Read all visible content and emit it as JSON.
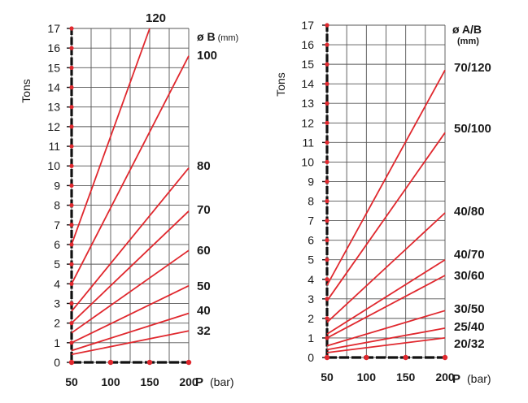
{
  "chart_data": [
    {
      "type": "line",
      "ylabel": "Tons",
      "xlabel_main": "P",
      "xlabel_unit": "(bar)",
      "legend_title": "ø B",
      "legend_unit": "(mm)",
      "x_ticks": [
        50,
        100,
        150,
        200
      ],
      "xlim": [
        50,
        200
      ],
      "y_ticks": [
        0,
        1,
        2,
        3,
        4,
        5,
        6,
        7,
        8,
        9,
        10,
        11,
        12,
        13,
        14,
        15,
        16,
        17
      ],
      "ylim": [
        0,
        17
      ],
      "grid": true,
      "series_color": "#e0282e",
      "series": [
        {
          "name": "120",
          "x": [
            50,
            150
          ],
          "y": [
            6.0,
            17.0
          ]
        },
        {
          "name": "100",
          "x": [
            50,
            200
          ],
          "y": [
            4.0,
            15.6
          ]
        },
        {
          "name": "80",
          "x": [
            50,
            200
          ],
          "y": [
            2.6,
            9.9
          ]
        },
        {
          "name": "70",
          "x": [
            50,
            200
          ],
          "y": [
            2.0,
            7.7
          ]
        },
        {
          "name": "60",
          "x": [
            50,
            200
          ],
          "y": [
            1.5,
            5.7
          ]
        },
        {
          "name": "50",
          "x": [
            50,
            200
          ],
          "y": [
            1.0,
            3.9
          ]
        },
        {
          "name": "40",
          "x": [
            50,
            200
          ],
          "y": [
            0.6,
            2.5
          ]
        },
        {
          "name": "32",
          "x": [
            50,
            200
          ],
          "y": [
            0.4,
            1.6
          ]
        }
      ]
    },
    {
      "type": "line",
      "ylabel": "Tons",
      "xlabel_main": "P",
      "xlabel_unit": "(bar)",
      "legend_title": "ø A/B",
      "legend_unit": "(mm)",
      "x_ticks": [
        50,
        100,
        150,
        200
      ],
      "xlim": [
        50,
        200
      ],
      "y_ticks": [
        0,
        1,
        2,
        3,
        4,
        5,
        6,
        7,
        8,
        9,
        10,
        11,
        12,
        13,
        14,
        15,
        16,
        17
      ],
      "ylim": [
        0,
        17
      ],
      "grid": true,
      "series_color": "#e0282e",
      "series": [
        {
          "name": "70/120",
          "x": [
            50,
            200
          ],
          "y": [
            3.7,
            14.7
          ]
        },
        {
          "name": "50/100",
          "x": [
            50,
            200
          ],
          "y": [
            2.9,
            11.5
          ]
        },
        {
          "name": "40/80",
          "x": [
            50,
            200
          ],
          "y": [
            1.8,
            7.4
          ]
        },
        {
          "name": "40/70",
          "x": [
            50,
            200
          ],
          "y": [
            1.2,
            5.0
          ]
        },
        {
          "name": "30/60",
          "x": [
            50,
            200
          ],
          "y": [
            1.0,
            4.2
          ]
        },
        {
          "name": "30/50",
          "x": [
            50,
            200
          ],
          "y": [
            0.6,
            2.4
          ]
        },
        {
          "name": "25/40",
          "x": [
            50,
            200
          ],
          "y": [
            0.4,
            1.5
          ]
        },
        {
          "name": "20/32",
          "x": [
            50,
            200
          ],
          "y": [
            0.25,
            1.0
          ]
        }
      ]
    }
  ]
}
